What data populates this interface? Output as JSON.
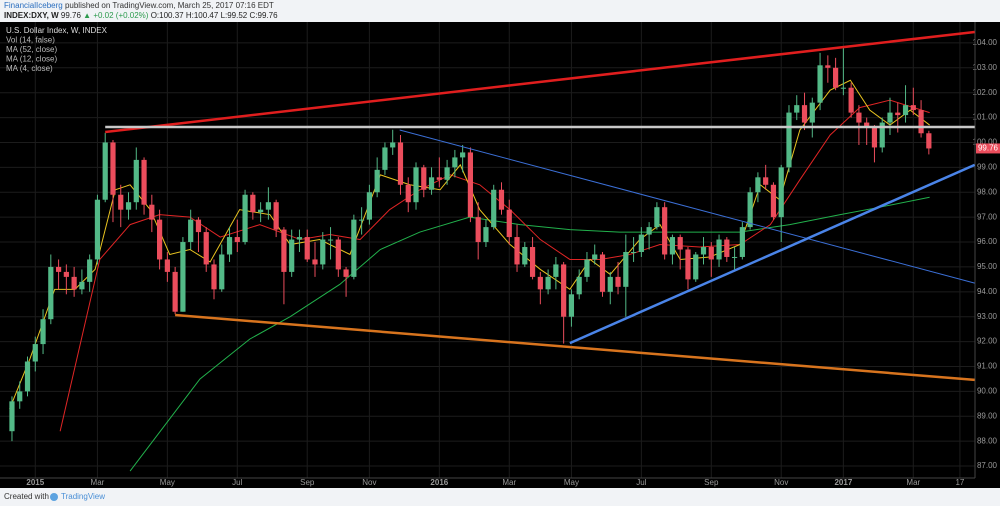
{
  "header": {
    "author": "FinancialIceberg",
    "published": "published on TradingView.com, March 25, 2017 07:16 EDT",
    "symbol": "INDEX:DXY, W",
    "change": "▲ +0.02 (+0.02%)",
    "ohlc_prefixes": [
      "O:",
      "H:",
      "L:",
      "C:"
    ]
  },
  "footer": {
    "created": "Created with",
    "brand": "TradingView"
  },
  "chart_data": {
    "type": "candlestick",
    "title": "U.S. Dollar Index, W, INDEX",
    "study_labels": [
      "Vol (14, false)"
    ],
    "up_color": "#53b987",
    "down_color": "#eb4d5c",
    "grid": true,
    "xlim": [
      -1.54,
      123.94
    ],
    "ylim": [
      86.52,
      104.84
    ],
    "xticks": [
      {
        "value": 3,
        "label": "2015"
      },
      {
        "value": 11,
        "label": "Mar"
      },
      {
        "value": 20,
        "label": "May"
      },
      {
        "value": 29,
        "label": "Jul"
      },
      {
        "value": 38,
        "label": "Sep"
      },
      {
        "value": 46,
        "label": "Nov"
      },
      {
        "value": 55,
        "label": "2016"
      },
      {
        "value": 64,
        "label": "Mar"
      },
      {
        "value": 72,
        "label": "May"
      },
      {
        "value": 81,
        "label": "Jul"
      },
      {
        "value": 90,
        "label": "Sep"
      },
      {
        "value": 99,
        "label": "Nov"
      },
      {
        "value": 107,
        "label": "2017"
      },
      {
        "value": 116,
        "label": "Mar"
      },
      {
        "value": 122,
        "label": "17"
      }
    ],
    "yticks": [
      {
        "value": 87,
        "label": "87.00"
      },
      {
        "value": 88,
        "label": "88.00"
      },
      {
        "value": 89,
        "label": "89.00"
      },
      {
        "value": 90,
        "label": "90.00"
      },
      {
        "value": 91,
        "label": "91.00"
      },
      {
        "value": 92,
        "label": "92.00"
      },
      {
        "value": 93,
        "label": "93.00"
      },
      {
        "value": 94,
        "label": "94.00"
      },
      {
        "value": 95,
        "label": "95.00"
      },
      {
        "value": 96,
        "label": "96.00"
      },
      {
        "value": 97,
        "label": "97.00"
      },
      {
        "value": 98,
        "label": "98.00"
      },
      {
        "value": 99,
        "label": "99.00"
      },
      {
        "value": 100,
        "label": "100.00"
      },
      {
        "value": 101,
        "label": "101.00"
      },
      {
        "value": 102,
        "label": "102.00"
      },
      {
        "value": 103,
        "label": "103.00"
      },
      {
        "value": 104,
        "label": "104.00"
      }
    ],
    "ohlc": [
      [
        88.4,
        89.8,
        88.0,
        89.6
      ],
      [
        89.6,
        90.4,
        89.3,
        90.0
      ],
      [
        90.0,
        91.4,
        89.8,
        91.2
      ],
      [
        91.2,
        92.2,
        90.8,
        91.9
      ],
      [
        91.9,
        93.3,
        91.5,
        92.9
      ],
      [
        92.9,
        95.5,
        92.7,
        95.0
      ],
      [
        95.0,
        95.3,
        94.1,
        94.8
      ],
      [
        94.8,
        95.1,
        93.9,
        94.6
      ],
      [
        94.6,
        95.0,
        93.8,
        94.1
      ],
      [
        94.1,
        94.9,
        93.9,
        94.4
      ],
      [
        94.4,
        95.5,
        94.0,
        95.3
      ],
      [
        95.3,
        97.9,
        95.1,
        97.7
      ],
      [
        97.7,
        100.39,
        97.6,
        100.0
      ],
      [
        100.0,
        100.1,
        96.8,
        97.9
      ],
      [
        97.9,
        98.3,
        96.6,
        97.3
      ],
      [
        97.3,
        98.0,
        96.9,
        97.6
      ],
      [
        97.6,
        99.8,
        97.3,
        99.3
      ],
      [
        99.3,
        99.4,
        97.1,
        97.5
      ],
      [
        97.5,
        97.9,
        96.4,
        96.9
      ],
      [
        96.9,
        97.3,
        94.9,
        95.3
      ],
      [
        95.3,
        95.6,
        94.4,
        94.8
      ],
      [
        94.8,
        95.0,
        93.1,
        93.2
      ],
      [
        93.2,
        96.2,
        93.2,
        96.0
      ],
      [
        96.0,
        97.3,
        95.7,
        96.9
      ],
      [
        96.9,
        97.0,
        95.6,
        96.4
      ],
      [
        96.4,
        96.6,
        94.8,
        95.1
      ],
      [
        95.1,
        95.3,
        93.7,
        94.1
      ],
      [
        94.1,
        95.9,
        94.0,
        95.5
      ],
      [
        95.5,
        96.6,
        95.2,
        96.2
      ],
      [
        96.2,
        96.9,
        95.6,
        96.0
      ],
      [
        96.0,
        98.1,
        95.9,
        97.9
      ],
      [
        97.9,
        98.0,
        96.9,
        97.2
      ],
      [
        97.2,
        97.6,
        96.8,
        97.3
      ],
      [
        97.3,
        98.2,
        96.9,
        97.6
      ],
      [
        97.6,
        97.7,
        96.2,
        96.5
      ],
      [
        96.5,
        96.6,
        93.5,
        94.8
      ],
      [
        94.8,
        96.5,
        94.6,
        96.1
      ],
      [
        96.1,
        96.5,
        95.6,
        96.2
      ],
      [
        96.2,
        96.5,
        95.2,
        95.3
      ],
      [
        95.3,
        96.0,
        94.6,
        95.1
      ],
      [
        95.1,
        96.4,
        94.9,
        96.1
      ],
      [
        96.1,
        96.6,
        95.3,
        96.1
      ],
      [
        96.1,
        96.2,
        94.6,
        94.9
      ],
      [
        94.9,
        95.0,
        93.8,
        94.6
      ],
      [
        94.6,
        97.1,
        94.5,
        96.9
      ],
      [
        96.9,
        97.4,
        96.3,
        96.9
      ],
      [
        96.9,
        98.3,
        96.7,
        98.0
      ],
      [
        98.0,
        99.4,
        97.8,
        98.9
      ],
      [
        98.9,
        100.0,
        98.7,
        99.8
      ],
      [
        99.8,
        100.51,
        99.5,
        100.0
      ],
      [
        100.0,
        100.3,
        97.9,
        98.3
      ],
      [
        98.3,
        98.6,
        97.2,
        97.6
      ],
      [
        97.6,
        99.2,
        97.3,
        99.0
      ],
      [
        99.0,
        99.1,
        97.8,
        98.1
      ],
      [
        98.1,
        99.0,
        97.9,
        98.6
      ],
      [
        98.6,
        99.4,
        98.2,
        98.5
      ],
      [
        98.5,
        99.3,
        98.3,
        99.0
      ],
      [
        99.0,
        99.7,
        98.6,
        99.4
      ],
      [
        99.4,
        99.9,
        98.8,
        99.6
      ],
      [
        99.6,
        99.8,
        96.8,
        97.0
      ],
      [
        97.0,
        97.6,
        95.3,
        96.0
      ],
      [
        96.0,
        96.9,
        95.8,
        96.6
      ],
      [
        96.6,
        98.3,
        96.5,
        98.1
      ],
      [
        98.1,
        98.4,
        97.1,
        97.3
      ],
      [
        97.3,
        97.7,
        95.9,
        96.2
      ],
      [
        96.2,
        96.7,
        94.8,
        95.1
      ],
      [
        95.1,
        96.0,
        95.0,
        95.8
      ],
      [
        95.8,
        96.2,
        94.5,
        94.6
      ],
      [
        94.6,
        94.8,
        93.5,
        94.1
      ],
      [
        94.1,
        94.9,
        93.9,
        94.6
      ],
      [
        94.6,
        95.4,
        94.1,
        95.1
      ],
      [
        95.1,
        95.2,
        91.92,
        93.0
      ],
      [
        93.0,
        94.1,
        92.6,
        93.9
      ],
      [
        93.9,
        94.9,
        93.7,
        94.6
      ],
      [
        94.6,
        95.6,
        94.4,
        95.3
      ],
      [
        95.3,
        95.9,
        95.1,
        95.5
      ],
      [
        95.5,
        95.6,
        93.8,
        94.0
      ],
      [
        94.0,
        94.8,
        93.5,
        94.6
      ],
      [
        94.6,
        95.2,
        93.9,
        94.2
      ],
      [
        94.2,
        96.3,
        93.0,
        95.6
      ],
      [
        95.6,
        96.2,
        95.2,
        95.6
      ],
      [
        95.6,
        96.6,
        95.4,
        96.3
      ],
      [
        96.3,
        96.8,
        95.7,
        96.6
      ],
      [
        96.6,
        97.6,
        96.5,
        97.4
      ],
      [
        97.4,
        97.6,
        95.3,
        95.5
      ],
      [
        95.5,
        96.3,
        95.1,
        96.2
      ],
      [
        96.2,
        96.3,
        94.9,
        95.7
      ],
      [
        95.7,
        95.8,
        94.1,
        94.5
      ],
      [
        94.5,
        95.6,
        94.4,
        95.5
      ],
      [
        95.5,
        96.2,
        95.1,
        95.8
      ],
      [
        95.8,
        96.0,
        94.6,
        95.3
      ],
      [
        95.3,
        96.3,
        95.0,
        96.1
      ],
      [
        96.1,
        96.2,
        95.2,
        95.4
      ],
      [
        95.4,
        95.8,
        94.9,
        95.4
      ],
      [
        95.4,
        96.8,
        95.3,
        96.6
      ],
      [
        96.6,
        98.2,
        96.5,
        98.0
      ],
      [
        98.0,
        98.8,
        97.6,
        98.6
      ],
      [
        98.6,
        99.1,
        98.1,
        98.3
      ],
      [
        98.3,
        98.4,
        96.9,
        97.0
      ],
      [
        97.0,
        99.1,
        96.0,
        99.0
      ],
      [
        99.0,
        101.5,
        98.8,
        101.2
      ],
      [
        101.2,
        101.9,
        100.9,
        101.5
      ],
      [
        101.5,
        102.0,
        100.5,
        100.8
      ],
      [
        100.8,
        101.8,
        100.2,
        101.6
      ],
      [
        101.6,
        103.6,
        101.3,
        103.1
      ],
      [
        103.1,
        103.5,
        102.4,
        103.0
      ],
      [
        103.0,
        103.4,
        102.1,
        102.2
      ],
      [
        102.2,
        103.82,
        101.9,
        102.2
      ],
      [
        102.2,
        102.4,
        101.0,
        101.2
      ],
      [
        101.2,
        101.5,
        99.9,
        100.8
      ],
      [
        100.8,
        101.0,
        99.9,
        100.6
      ],
      [
        100.6,
        100.7,
        99.2,
        99.8
      ],
      [
        99.8,
        101.0,
        99.6,
        100.8
      ],
      [
        100.8,
        101.8,
        100.3,
        101.2
      ],
      [
        101.2,
        101.6,
        100.4,
        101.1
      ],
      [
        101.1,
        102.3,
        100.8,
        101.5
      ],
      [
        101.5,
        102.2,
        101.1,
        101.3
      ],
      [
        101.3,
        101.7,
        100.2,
        100.37
      ],
      [
        100.37,
        100.47,
        99.52,
        99.76
      ]
    ],
    "series": [
      {
        "name": "MA (52, close)",
        "color": "#22b14c",
        "x": [
          15.2,
          24.2,
          30.6,
          35.8,
          42.2,
          47.4,
          52.5,
          58.9,
          65.4,
          71.8,
          78.2,
          86,
          93.7,
          100.1,
          106.6,
          111.7,
          118.1
        ],
        "values": [
          86.8,
          90.5,
          92.1,
          93.0,
          94.3,
          95.7,
          96.4,
          97.0,
          96.7,
          96.5,
          96.4,
          96.4,
          96.4,
          96.7,
          97.1,
          97.4,
          97.8
        ]
      },
      {
        "name": "MA (12, close)",
        "color": "#e02525",
        "x": [
          6.2,
          11.3,
          15.2,
          19,
          22.9,
          26.8,
          31.9,
          37.1,
          40.9,
          44.8,
          48.6,
          52.5,
          56.4,
          60.2,
          64.1,
          68,
          71.8,
          75.7,
          79.5,
          83.4,
          88.5,
          93.7,
          97.6,
          101.4,
          105.3,
          109.1,
          113,
          118.1
        ],
        "values": [
          88.4,
          95.3,
          96.7,
          97.1,
          97.0,
          96.2,
          96.7,
          96.1,
          96.3,
          96.1,
          97.3,
          98.1,
          98.7,
          98.3,
          97.3,
          96.1,
          95.3,
          95.3,
          95.5,
          95.9,
          95.8,
          95.9,
          96.7,
          98.5,
          100.3,
          101.4,
          101.7,
          101.2
        ]
      },
      {
        "name": "MA (4, close)",
        "color": "#e8c320",
        "x": [
          -0.3,
          2.3,
          5.5,
          8.1,
          10.7,
          13.3,
          15.2,
          17.8,
          20.3,
          22.9,
          25.5,
          29.3,
          33.2,
          35.8,
          39.6,
          43.5,
          47.4,
          51.2,
          55.1,
          57.7,
          60.2,
          64.1,
          68,
          71.8,
          74.4,
          77,
          80.8,
          83.4,
          86,
          89.8,
          93.7,
          96.3,
          98.8,
          101.4,
          105.3,
          107.9,
          110.4,
          113,
          115.6,
          118.1
        ],
        "values": [
          89.3,
          91.3,
          94.1,
          94.1,
          94.9,
          98.1,
          98.3,
          97.3,
          95.5,
          95.7,
          95.2,
          97.3,
          97.1,
          95.9,
          96.1,
          95.5,
          98.7,
          98.3,
          98.1,
          99.1,
          97.3,
          95.9,
          94.9,
          94.1,
          95.3,
          94.7,
          96.1,
          96.7,
          95.3,
          95.4,
          95.9,
          98.3,
          97.7,
          100.5,
          102.1,
          102.5,
          101.3,
          100.7,
          101.3,
          100.7
        ]
      }
    ],
    "drawings": [
      {
        "color": "#e01e1e",
        "width": 2.5,
        "x": [
          12,
          123.9
        ],
        "y": [
          100.42,
          104.44
        ]
      },
      {
        "color": "#c8c8c8",
        "width": 2.5,
        "x": [
          12,
          123.9
        ],
        "y": [
          100.62,
          100.62
        ]
      },
      {
        "color": "#3b6fd6",
        "width": 1,
        "x": [
          49.9,
          123.9
        ],
        "y": [
          100.5,
          94.35
        ]
      },
      {
        "color": "#4a84e8",
        "width": 2.5,
        "x": [
          71.8,
          123.9
        ],
        "y": [
          91.94,
          99.1
        ]
      },
      {
        "color": "#d8741e",
        "width": 2.5,
        "x": [
          21,
          123.9
        ],
        "y": [
          93.07,
          90.46
        ]
      }
    ]
  }
}
